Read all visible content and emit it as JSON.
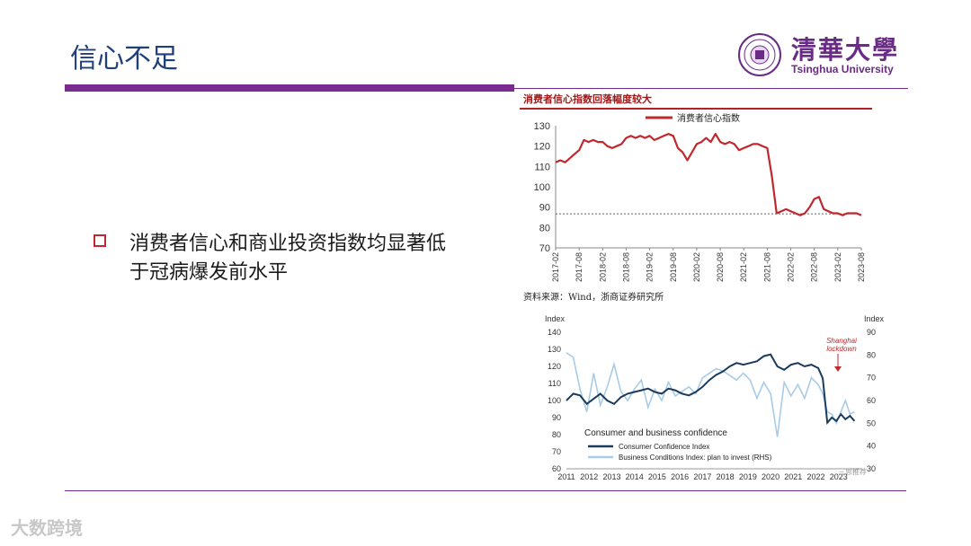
{
  "slide": {
    "title": "信心不足",
    "bullet": "消费者信心和商业投资指数均显著低于冠病爆发前水平",
    "watermark": "大数跨境"
  },
  "logo": {
    "cn": "清華大學",
    "en": "Tsinghua University"
  },
  "colors": {
    "accent": "#7a2b8f",
    "title": "#1f3f7a",
    "chart1_line": "#c0282d",
    "chart2_dark": "#1b3b5e",
    "chart2_light": "#a8cbe6"
  },
  "chart_data": [
    {
      "type": "line",
      "title": "消费者信心指数回落幅度较大",
      "legend": "消费者信心指数",
      "source": "资料来源：Wind，浙商证券研究所",
      "xlabels": [
        "2017-02",
        "2017-08",
        "2018-02",
        "2018-08",
        "2019-02",
        "2019-08",
        "2020-02",
        "2020-08",
        "2021-02",
        "2021-08",
        "2022-02",
        "2022-08",
        "2023-02",
        "2023-08"
      ],
      "ylim": [
        70,
        130
      ],
      "yticks": [
        70,
        80,
        90,
        100,
        110,
        120,
        130
      ],
      "reference_line": 86.7,
      "x": [
        0,
        0.2,
        0.4,
        0.6,
        0.8,
        1,
        1.2,
        1.4,
        1.6,
        1.8,
        2,
        2.2,
        2.4,
        2.6,
        2.8,
        3,
        3.2,
        3.4,
        3.6,
        3.8,
        4,
        4.2,
        4.4,
        4.6,
        4.8,
        5,
        5.2,
        5.4,
        5.6,
        5.8,
        6,
        6.2,
        6.4,
        6.6,
        6.8,
        7,
        7.2,
        7.4,
        7.6,
        7.8,
        8,
        8.2,
        8.4,
        8.6,
        8.8,
        9,
        9.2,
        9.4,
        9.6,
        9.8,
        10,
        10.2,
        10.4,
        10.6,
        10.8,
        11,
        11.2,
        11.4,
        11.6,
        11.8,
        12,
        12.2,
        12.4,
        12.6,
        12.8,
        13
      ],
      "values": [
        112,
        113,
        112,
        114,
        116,
        118,
        123,
        122,
        123,
        122,
        122,
        120,
        119,
        120,
        121,
        124,
        125,
        124,
        125,
        124,
        125,
        123,
        124,
        125,
        126,
        125,
        119,
        117,
        113,
        117,
        121,
        122,
        124,
        122,
        126,
        122,
        121,
        122,
        121,
        118,
        119,
        120,
        121,
        121,
        120,
        119,
        105,
        87,
        88,
        89,
        88,
        87,
        86,
        87,
        90,
        94,
        95,
        89,
        88,
        87,
        87,
        86,
        87,
        87,
        87,
        86
      ],
      "series_name": "消费者信心指数"
    },
    {
      "type": "line",
      "title": "Consumer and business confidence",
      "ylabel_left": "Index",
      "ylabel_right": "Index",
      "xlabels": [
        "2011",
        "2012",
        "2013",
        "2014",
        "2015",
        "2016",
        "2017",
        "2018",
        "2019",
        "2020",
        "2021",
        "2022",
        "2023"
      ],
      "ylim_left": [
        60,
        140
      ],
      "yticks_left": [
        60,
        70,
        80,
        90,
        100,
        110,
        120,
        130,
        140
      ],
      "ylim_right": [
        30,
        90
      ],
      "yticks_right": [
        30,
        40,
        50,
        60,
        70,
        80,
        90
      ],
      "annotation": "Shanghai lockdown",
      "small_watermark": "三思推荐",
      "x": [
        2011,
        2011.3,
        2011.6,
        2011.9,
        2012.2,
        2012.5,
        2012.8,
        2013.1,
        2013.4,
        2013.7,
        2014,
        2014.3,
        2014.6,
        2014.9,
        2015.2,
        2015.5,
        2015.8,
        2016.1,
        2016.4,
        2016.7,
        2017,
        2017.3,
        2017.6,
        2017.9,
        2018.2,
        2018.5,
        2018.8,
        2019.1,
        2019.4,
        2019.7,
        2020,
        2020.3,
        2020.6,
        2020.9,
        2021.2,
        2021.5,
        2021.8,
        2022.1,
        2022.3,
        2022.5,
        2022.7,
        2022.9,
        2023.1,
        2023.3,
        2023.5,
        2023.7
      ],
      "series": [
        {
          "name": "Consumer Confidence Index",
          "axis": "left",
          "values": [
            100,
            104,
            103,
            98,
            101,
            104,
            100,
            98,
            102,
            104,
            105,
            106,
            107,
            105,
            104,
            107,
            106,
            104,
            103,
            105,
            108,
            112,
            115,
            117,
            120,
            122,
            121,
            122,
            123,
            126,
            127,
            120,
            118,
            121,
            122,
            120,
            121,
            119,
            113,
            87,
            90,
            88,
            92,
            89,
            91,
            88
          ]
        },
        {
          "name": "Business Conditions Index: plan to invest (RHS)",
          "axis": "right",
          "values": [
            81,
            79,
            65,
            55,
            72,
            58,
            66,
            76,
            64,
            60,
            65,
            69,
            57,
            65,
            60,
            68,
            62,
            64,
            66,
            63,
            70,
            72,
            74,
            73,
            71,
            69,
            72,
            69,
            61,
            68,
            63,
            44,
            68,
            62,
            67,
            61,
            70,
            67,
            63,
            55,
            54,
            50,
            55,
            60,
            54,
            55
          ]
        }
      ]
    }
  ]
}
